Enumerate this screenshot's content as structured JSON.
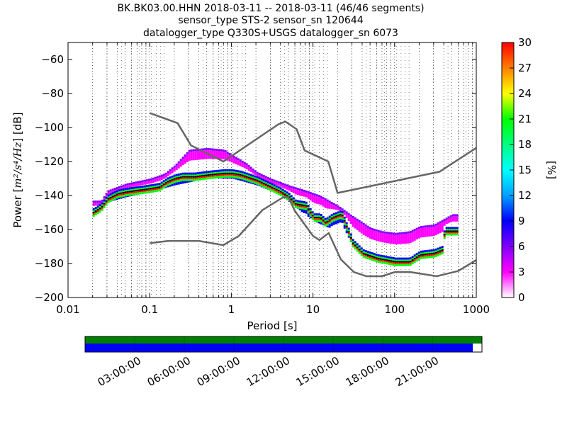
{
  "title_lines": [
    "BK.BK03.00.HHN   2018-03-11 -- 2018-03-11  (46/46 segments)",
    "sensor_type STS-2 sensor_sn 120644",
    "datalogger_type Q330S+USGS datalogger_sn 6073"
  ],
  "chart_data": {
    "type": "heatmap",
    "xlabel": "Period [s]",
    "ylabel_prefix": "Power [",
    "ylabel_unit": "m²/s⁴/Hz",
    "ylabel_suffix": "] [dB]",
    "xscale": "log",
    "xlim": [
      0.01,
      1000
    ],
    "ylim": [
      -200,
      -50
    ],
    "xticks": [
      {
        "value": 0.01,
        "label": "0.01"
      },
      {
        "value": 0.1,
        "label": "0.1"
      },
      {
        "value": 1,
        "label": "1"
      },
      {
        "value": 10,
        "label": "10"
      },
      {
        "value": 100,
        "label": "100"
      },
      {
        "value": 1000,
        "label": "1000"
      }
    ],
    "yticks": [
      {
        "value": -60,
        "label": "−60"
      },
      {
        "value": -80,
        "label": "−80"
      },
      {
        "value": -100,
        "label": "−100"
      },
      {
        "value": -120,
        "label": "−120"
      },
      {
        "value": -140,
        "label": "−140"
      },
      {
        "value": -160,
        "label": "−160"
      },
      {
        "value": -180,
        "label": "−180"
      },
      {
        "value": -200,
        "label": "−200"
      }
    ],
    "grid": "dotted vertical lines",
    "colorbar": {
      "label": "[%]",
      "range": [
        0,
        30
      ],
      "ticks": [
        {
          "value": 0,
          "label": "0"
        },
        {
          "value": 3,
          "label": "3"
        },
        {
          "value": 6,
          "label": "6"
        },
        {
          "value": 9,
          "label": "9"
        },
        {
          "value": 12,
          "label": "12"
        },
        {
          "value": 15,
          "label": "15"
        },
        {
          "value": 18,
          "label": "18"
        },
        {
          "value": 21,
          "label": "21"
        },
        {
          "value": 24,
          "label": "24"
        },
        {
          "value": 27,
          "label": "27"
        },
        {
          "value": 30,
          "label": "30"
        }
      ],
      "colors": [
        "#ffffff",
        "#ff00ff",
        "#8000ff",
        "#0000ff",
        "#00a0ff",
        "#00ffff",
        "#00ff80",
        "#00ff00",
        "#ffff00",
        "#ff8000",
        "#ff0000"
      ]
    },
    "noise_models": [
      {
        "name": "NHNM",
        "color": "#666666",
        "points": [
          [
            0.1,
            -91.5
          ],
          [
            0.22,
            -97.4
          ],
          [
            0.32,
            -110.5
          ],
          [
            0.8,
            -120
          ],
          [
            3.8,
            -98
          ],
          [
            4.6,
            -96.5
          ],
          [
            6.3,
            -101
          ],
          [
            7.9,
            -113.5
          ],
          [
            15.4,
            -120
          ],
          [
            20,
            -138.5
          ],
          [
            354.8,
            -126
          ],
          [
            1000,
            -112
          ]
        ]
      },
      {
        "name": "NLNM",
        "color": "#666666",
        "points": [
          [
            0.1,
            -168
          ],
          [
            0.17,
            -166.7
          ],
          [
            0.4,
            -166.7
          ],
          [
            0.8,
            -169.2
          ],
          [
            1.24,
            -163.7
          ],
          [
            2.4,
            -148.6
          ],
          [
            4.3,
            -141.1
          ],
          [
            5,
            -141.1
          ],
          [
            6,
            -149
          ],
          [
            10,
            -163.8
          ],
          [
            12,
            -166.2
          ],
          [
            15.6,
            -162.1
          ],
          [
            21.9,
            -177.5
          ],
          [
            31.6,
            -185
          ],
          [
            45,
            -187.5
          ],
          [
            70,
            -187.5
          ],
          [
            101,
            -185
          ],
          [
            154,
            -185
          ],
          [
            328,
            -187.5
          ],
          [
            600,
            -184.4
          ],
          [
            1000,
            -178
          ]
        ]
      }
    ],
    "psd_mode": [
      {
        "x": 0.02,
        "y": -150
      },
      {
        "x": 0.025,
        "y": -147
      },
      {
        "x": 0.03,
        "y": -142
      },
      {
        "x": 0.04,
        "y": -139
      },
      {
        "x": 0.05,
        "y": -138
      },
      {
        "x": 0.07,
        "y": -137
      },
      {
        "x": 0.1,
        "y": -136
      },
      {
        "x": 0.13,
        "y": -135
      },
      {
        "x": 0.16,
        "y": -132
      },
      {
        "x": 0.2,
        "y": -130
      },
      {
        "x": 0.25,
        "y": -129
      },
      {
        "x": 0.35,
        "y": -129
      },
      {
        "x": 0.5,
        "y": -128
      },
      {
        "x": 0.8,
        "y": -127
      },
      {
        "x": 1,
        "y": -127
      },
      {
        "x": 1.3,
        "y": -128
      },
      {
        "x": 2,
        "y": -131
      },
      {
        "x": 3,
        "y": -135
      },
      {
        "x": 4,
        "y": -138
      },
      {
        "x": 5,
        "y": -141
      },
      {
        "x": 6,
        "y": -145
      },
      {
        "x": 8,
        "y": -146
      },
      {
        "x": 10,
        "y": -153
      },
      {
        "x": 12,
        "y": -153
      },
      {
        "x": 14,
        "y": -156
      },
      {
        "x": 17,
        "y": -153
      },
      {
        "x": 22,
        "y": -151
      },
      {
        "x": 26,
        "y": -160
      },
      {
        "x": 30,
        "y": -168
      },
      {
        "x": 40,
        "y": -174
      },
      {
        "x": 60,
        "y": -177
      },
      {
        "x": 100,
        "y": -179
      },
      {
        "x": 150,
        "y": -179
      },
      {
        "x": 200,
        "y": -175
      },
      {
        "x": 300,
        "y": -174
      },
      {
        "x": 380,
        "y": -172
      },
      {
        "x": 400,
        "y": -161
      },
      {
        "x": 600,
        "y": -161
      }
    ],
    "psd_upper": [
      {
        "x": 0.025,
        "y": -143
      },
      {
        "x": 0.03,
        "y": -137
      },
      {
        "x": 0.05,
        "y": -133
      },
      {
        "x": 0.1,
        "y": -130
      },
      {
        "x": 0.15,
        "y": -127
      },
      {
        "x": 0.2,
        "y": -122
      },
      {
        "x": 0.25,
        "y": -117
      },
      {
        "x": 0.3,
        "y": -113
      },
      {
        "x": 0.5,
        "y": -112
      },
      {
        "x": 0.8,
        "y": -113
      },
      {
        "x": 1,
        "y": -116
      },
      {
        "x": 1.5,
        "y": -121
      },
      {
        "x": 2,
        "y": -126
      },
      {
        "x": 3,
        "y": -130
      },
      {
        "x": 5,
        "y": -134
      },
      {
        "x": 8,
        "y": -137
      },
      {
        "x": 12,
        "y": -140
      },
      {
        "x": 20,
        "y": -146
      },
      {
        "x": 30,
        "y": -152
      },
      {
        "x": 50,
        "y": -159
      },
      {
        "x": 70,
        "y": -161
      },
      {
        "x": 100,
        "y": -162
      },
      {
        "x": 150,
        "y": -161
      },
      {
        "x": 200,
        "y": -158
      },
      {
        "x": 300,
        "y": -157
      },
      {
        "x": 500,
        "y": -151
      }
    ],
    "psd_lower": [
      {
        "x": 0.03,
        "y": -144
      },
      {
        "x": 0.05,
        "y": -141
      },
      {
        "x": 0.1,
        "y": -138
      },
      {
        "x": 0.2,
        "y": -134
      },
      {
        "x": 0.5,
        "y": -130
      },
      {
        "x": 1,
        "y": -130
      },
      {
        "x": 2,
        "y": -134
      },
      {
        "x": 4,
        "y": -140
      },
      {
        "x": 6,
        "y": -147
      },
      {
        "x": 10,
        "y": -155
      },
      {
        "x": 15,
        "y": -159
      },
      {
        "x": 25,
        "y": -162
      },
      {
        "x": 30,
        "y": -170
      },
      {
        "x": 50,
        "y": -178
      },
      {
        "x": 100,
        "y": -181
      },
      {
        "x": 200,
        "y": -178
      },
      {
        "x": 400,
        "y": -162
      },
      {
        "x": 600,
        "y": -163
      }
    ],
    "colors": {
      "mode": "#000000",
      "center": "#ff0000",
      "inner": "#00ff00",
      "outer": "#0000ff",
      "upper": "#8000ff",
      "lower": "#ff00ff"
    }
  },
  "timeline": {
    "ticks": [
      "03:00:00",
      "06:00:00",
      "09:00:00",
      "12:00:00",
      "15:00:00",
      "18:00:00",
      "21:00:00"
    ],
    "tick_hours": [
      3,
      6,
      9,
      12,
      15,
      18,
      21
    ],
    "span_hours": [
      0,
      24
    ],
    "coverage_color": "#008000",
    "data_color": "#0000ff",
    "data_fraction": 0.977
  }
}
